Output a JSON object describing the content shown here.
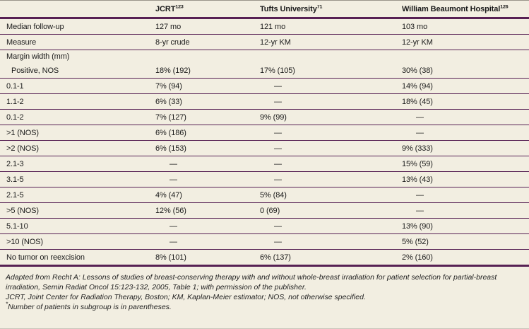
{
  "table": {
    "columns": [
      {
        "label": "",
        "ref": ""
      },
      {
        "label": "JCRT",
        "ref": "123"
      },
      {
        "label": "Tufts University",
        "ref": "71"
      },
      {
        "label": "William Beaumont Hospital",
        "ref": "126"
      }
    ],
    "rows": [
      {
        "label": "Median follow-up",
        "values": [
          "127 mo",
          "121 mo",
          "103 mo"
        ]
      },
      {
        "label": "Measure",
        "values": [
          "8-yr crude",
          "12-yr KM",
          "12-yr KM"
        ]
      },
      {
        "label": "Margin width (mm)",
        "type": "section",
        "values": [
          "",
          "",
          ""
        ]
      },
      {
        "label": "Positive, NOS",
        "indent": true,
        "values": [
          "18% (192)",
          "17% (105)",
          "30% (38)"
        ]
      },
      {
        "label": "0.1-1",
        "values": [
          "7% (94)",
          "—",
          "14% (94)"
        ]
      },
      {
        "label": "1.1-2",
        "values": [
          "6% (33)",
          "—",
          "18% (45)"
        ]
      },
      {
        "label": "0.1-2",
        "values": [
          "7% (127)",
          "9% (99)",
          "—"
        ]
      },
      {
        "label": ">1 (NOS)",
        "values": [
          "6% (186)",
          "—",
          "—"
        ]
      },
      {
        "label": ">2 (NOS)",
        "values": [
          "6% (153)",
          "—",
          "9% (333)"
        ]
      },
      {
        "label": "2.1-3",
        "values": [
          "—",
          "—",
          "15% (59)"
        ]
      },
      {
        "label": "3.1-5",
        "values": [
          "—",
          "—",
          "13% (43)"
        ]
      },
      {
        "label": "2.1-5",
        "values": [
          "4% (47)",
          "5% (84)",
          "—"
        ]
      },
      {
        "label": ">5 (NOS)",
        "values": [
          "12% (56)",
          "0 (69)",
          "—"
        ]
      },
      {
        "label": "5.1-10",
        "values": [
          "—",
          "—",
          "13% (90)"
        ]
      },
      {
        "label": ">10 (NOS)",
        "values": [
          "—",
          "—",
          "5% (52)"
        ]
      },
      {
        "label": "No tumor on reexcision",
        "last": true,
        "values": [
          "8% (101)",
          "6% (137)",
          "2% (160)"
        ]
      }
    ],
    "dash_char": "—"
  },
  "footnotes": {
    "source": "Adapted from Recht A: Lessons of studies of breast-conserving therapy with and without whole-breast irradiation for patient selection for partial-breast irradiation, Semin Radiat Oncol 15:123-132, 2005, Table 1; with permission of the publisher.",
    "abbreviations": "JCRT, Joint Center for Radiation Therapy, Boston; KM, Kaplan-Meier estimator; NOS, not otherwise specified.",
    "note_symbol": "*",
    "note": "Number of patients in subgroup is in parentheses."
  },
  "colors": {
    "background": "#f2eee1",
    "rule": "#572154",
    "text": "#1a1a1a"
  }
}
